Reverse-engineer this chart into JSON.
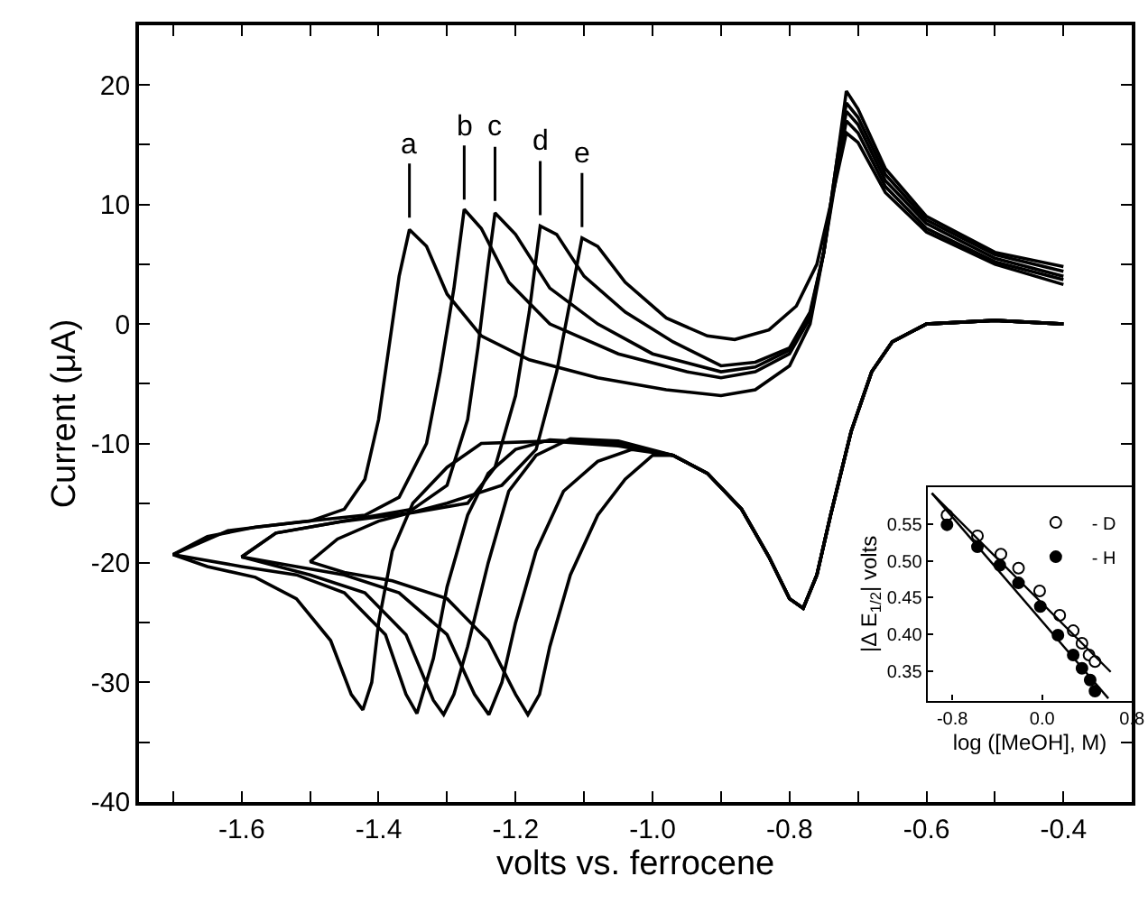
{
  "chart_data": [
    {
      "type": "line",
      "xlabel": "volts vs. ferrocene",
      "ylabel": "Current (μA)",
      "xlim": [
        -1.75,
        -0.3
      ],
      "ylim": [
        -40,
        25
      ],
      "xticks": [
        {
          "value": -1.7,
          "label": null
        },
        -1.6,
        {
          "value": -1.5,
          "label": null
        },
        -1.4,
        {
          "value": -1.3,
          "label": null
        },
        -1.2,
        {
          "value": -1.1,
          "label": null
        },
        {
          "value": -1.0,
          "label": "-1.0"
        },
        {
          "value": -0.9,
          "label": null
        },
        -0.8,
        {
          "value": -0.7,
          "label": null
        },
        -0.6,
        {
          "value": -0.5,
          "label": null
        },
        -0.4
      ],
      "yticks": [
        -40,
        {
          "value": -35,
          "label": null
        },
        -30,
        {
          "value": -25,
          "label": null
        },
        -20,
        {
          "value": -15,
          "label": null
        },
        -10,
        {
          "value": -5,
          "label": null
        },
        0,
        {
          "value": 5,
          "label": null
        },
        10,
        {
          "value": 15,
          "label": null
        },
        20
      ],
      "grid": false,
      "legend": false,
      "annotations": [
        {
          "text": "a",
          "x": -1.355,
          "y": 8.6
        },
        {
          "text": "b",
          "x": -1.275,
          "y": 10.1
        },
        {
          "text": "c",
          "x": -1.23,
          "y": 10.0
        },
        {
          "text": "d",
          "x": -1.164,
          "y": 8.8
        },
        {
          "text": "e",
          "x": -1.103,
          "y": 7.8
        }
      ],
      "series": [
        {
          "color": "#000000",
          "x": [
            -0.4,
            -0.5,
            -0.6,
            -0.65,
            -0.68,
            -0.71,
            -0.74,
            -0.76,
            -0.78,
            -0.8,
            -0.83,
            -0.87,
            -0.92,
            -0.97,
            -1.05,
            -1.15,
            -1.25,
            -1.3,
            -1.35,
            -1.38,
            -1.4,
            -1.41,
            -1.423,
            -1.44,
            -1.47,
            -1.52,
            -1.58,
            -1.65,
            -1.7,
            -1.65,
            -1.58,
            -1.5,
            -1.45,
            -1.42,
            -1.4,
            -1.385,
            -1.37,
            -1.355,
            -1.33,
            -1.3,
            -1.25,
            -1.18,
            -1.08,
            -0.98,
            -0.9,
            -0.85,
            -0.8,
            -0.77,
            -0.75,
            -0.73,
            -0.717,
            -0.7,
            -0.66,
            -0.6,
            -0.5,
            -0.4
          ],
          "values": [
            0.0,
            0.3,
            0.0,
            -1.5,
            -4,
            -9,
            -16,
            -21,
            -23.8,
            -23,
            -19.5,
            -15.5,
            -12.5,
            -11.0,
            -10.2,
            -9.8,
            -10.0,
            -12,
            -15,
            -19,
            -25,
            -30,
            -32.3,
            -31,
            -26.5,
            -23,
            -21.2,
            -20.3,
            -19.3,
            -17.8,
            -17,
            -16.5,
            -15.5,
            -13,
            -8,
            -2,
            4,
            7.9,
            6.5,
            2.5,
            -1,
            -3,
            -4.5,
            -5.5,
            -6,
            -5.5,
            -3.5,
            0,
            6,
            14,
            19.5,
            18,
            13,
            9,
            6,
            4.8
          ]
        },
        {
          "color": "#000000",
          "x": [
            -0.4,
            -0.5,
            -0.6,
            -0.65,
            -0.68,
            -0.71,
            -0.74,
            -0.76,
            -0.78,
            -0.8,
            -0.83,
            -0.87,
            -0.92,
            -0.97,
            -1.05,
            -1.15,
            -1.2,
            -1.24,
            -1.27,
            -1.3,
            -1.32,
            -1.344,
            -1.36,
            -1.39,
            -1.45,
            -1.52,
            -1.6,
            -1.7,
            -1.62,
            -1.52,
            -1.42,
            -1.37,
            -1.33,
            -1.31,
            -1.29,
            -1.275,
            -1.25,
            -1.21,
            -1.15,
            -1.05,
            -0.95,
            -0.9,
            -0.85,
            -0.8,
            -0.77,
            -0.75,
            -0.73,
            -0.717,
            -0.7,
            -0.66,
            -0.6,
            -0.5,
            -0.4
          ],
          "values": [
            0.0,
            0.3,
            0.0,
            -1.5,
            -4,
            -9,
            -16,
            -21,
            -23.8,
            -23,
            -19.5,
            -15.5,
            -12.5,
            -11.0,
            -10.0,
            -9.7,
            -10.5,
            -12.5,
            -16,
            -22,
            -28,
            -32.6,
            -31,
            -26,
            -22.5,
            -21,
            -20.3,
            -19.3,
            -17.3,
            -16.6,
            -16,
            -14.5,
            -10,
            -4,
            3,
            9.6,
            8,
            3.5,
            0,
            -2.5,
            -4,
            -4.5,
            -4,
            -2.5,
            0.5,
            6,
            14,
            18.5,
            17.3,
            12.5,
            8.7,
            5.8,
            4.4
          ]
        },
        {
          "color": "#000000",
          "x": [
            -0.4,
            -0.5,
            -0.6,
            -0.65,
            -0.68,
            -0.71,
            -0.74,
            -0.76,
            -0.78,
            -0.8,
            -0.83,
            -0.87,
            -0.92,
            -0.97,
            -1.05,
            -1.12,
            -1.17,
            -1.21,
            -1.24,
            -1.27,
            -1.29,
            -1.305,
            -1.32,
            -1.36,
            -1.42,
            -1.5,
            -1.6,
            -1.55,
            -1.45,
            -1.35,
            -1.3,
            -1.27,
            -1.255,
            -1.24,
            -1.23,
            -1.2,
            -1.15,
            -1.08,
            -1.0,
            -0.9,
            -0.85,
            -0.8,
            -0.77,
            -0.75,
            -0.73,
            -0.717,
            -0.7,
            -0.66,
            -0.6,
            -0.5,
            -0.4
          ],
          "values": [
            0.0,
            0.3,
            0.0,
            -1.5,
            -4,
            -9,
            -16,
            -21,
            -23.8,
            -23,
            -19.5,
            -15.5,
            -12.5,
            -11.0,
            -9.8,
            -9.6,
            -11,
            -14,
            -20,
            -27,
            -31,
            -32.7,
            -31.5,
            -26,
            -22.5,
            -21,
            -19.5,
            -17.5,
            -16.5,
            -15.5,
            -13.5,
            -8,
            -2,
            5,
            9.3,
            7.5,
            3,
            0,
            -2.5,
            -4,
            -3.6,
            -2.2,
            0.8,
            6,
            13.5,
            17.8,
            16.7,
            12,
            8.4,
            5.5,
            4.0
          ]
        },
        {
          "color": "#000000",
          "x": [
            -0.4,
            -0.5,
            -0.6,
            -0.65,
            -0.68,
            -0.71,
            -0.74,
            -0.76,
            -0.78,
            -0.8,
            -0.83,
            -0.87,
            -0.92,
            -0.97,
            -1.03,
            -1.08,
            -1.13,
            -1.17,
            -1.2,
            -1.22,
            -1.239,
            -1.26,
            -1.3,
            -1.37,
            -1.45,
            -1.52,
            -1.6,
            -1.55,
            -1.45,
            -1.35,
            -1.27,
            -1.23,
            -1.2,
            -1.18,
            -1.164,
            -1.14,
            -1.1,
            -1.04,
            -0.97,
            -0.9,
            -0.85,
            -0.8,
            -0.77,
            -0.75,
            -0.73,
            -0.717,
            -0.7,
            -0.66,
            -0.6,
            -0.5,
            -0.4
          ],
          "values": [
            0.0,
            0.3,
            0.0,
            -1.5,
            -4,
            -9,
            -16,
            -21,
            -23.8,
            -23,
            -19.5,
            -15.5,
            -12.5,
            -11.0,
            -10.5,
            -11.5,
            -14,
            -19,
            -25,
            -30,
            -32.7,
            -31,
            -26,
            -22.5,
            -21,
            -20.3,
            -19.5,
            -17.5,
            -16.5,
            -15.8,
            -15,
            -12,
            -6,
            1,
            8.2,
            7.5,
            4,
            1,
            -1.5,
            -3.5,
            -3.2,
            -2,
            1,
            6,
            13,
            17,
            16,
            11.5,
            8,
            5.2,
            3.7
          ]
        },
        {
          "color": "#000000",
          "x": [
            -0.4,
            -0.5,
            -0.6,
            -0.65,
            -0.68,
            -0.71,
            -0.74,
            -0.76,
            -0.78,
            -0.8,
            -0.83,
            -0.87,
            -0.92,
            -0.97,
            -1.0,
            -1.04,
            -1.08,
            -1.12,
            -1.15,
            -1.165,
            -1.182,
            -1.2,
            -1.24,
            -1.3,
            -1.38,
            -1.45,
            -1.5,
            -1.46,
            -1.4,
            -1.3,
            -1.22,
            -1.17,
            -1.14,
            -1.12,
            -1.103,
            -1.08,
            -1.04,
            -0.98,
            -0.92,
            -0.88,
            -0.83,
            -0.79,
            -0.76,
            -0.74,
            -0.717,
            -0.7,
            -0.66,
            -0.6,
            -0.5,
            -0.4
          ],
          "values": [
            0.0,
            0.3,
            0.0,
            -1.5,
            -4,
            -9,
            -16,
            -21,
            -23.8,
            -23,
            -19.5,
            -15.5,
            -12.5,
            -11.0,
            -11,
            -13,
            -16,
            -21,
            -27,
            -31,
            -32.7,
            -31,
            -26.5,
            -23,
            -21.5,
            -20.8,
            -19.9,
            -18,
            -16.5,
            -15,
            -13.5,
            -10.5,
            -4,
            2,
            7.2,
            6.5,
            3.5,
            0.5,
            -1,
            -1.3,
            -0.5,
            1.5,
            5,
            10,
            16,
            15.2,
            11,
            7.7,
            5,
            3.3
          ]
        }
      ]
    },
    {
      "type": "scatter",
      "xlabel": "log ([MeOH], M)",
      "ylabel": "|Δ E$_{1/2}$| volts",
      "xlim": [
        -1.02,
        0.8
      ],
      "ylim": [
        0.31,
        0.6
      ],
      "xticks": [
        -0.8,
        {
          "value": 0,
          "label": "0.0"
        },
        0.8
      ],
      "yticks": [
        0.35,
        {
          "value": 0.4,
          "label": "0.40"
        },
        0.45,
        {
          "value": 0.5,
          "label": "0.50"
        },
        0.55
      ],
      "grid": false,
      "legend": "top right",
      "series": [
        {
          "name": "- D",
          "type": "scatter",
          "marker": "circle",
          "color": "#ffffff",
          "x": [
            -0.847,
            -0.576,
            -0.367,
            -0.21,
            -0.022,
            0.157,
            0.277,
            0.355,
            0.418,
            0.471
          ],
          "values": [
            0.562,
            0.534,
            0.509,
            0.49,
            0.459,
            0.426,
            0.405,
            0.388,
            0.372,
            0.363
          ]
        },
        {
          "name": "- H",
          "type": "scatter",
          "marker": "circle",
          "color": "#000000",
          "x": [
            -0.847,
            -0.576,
            -0.377,
            -0.21,
            -0.016,
            0.141,
            0.277,
            0.355,
            0.428,
            0.471
          ],
          "values": [
            0.549,
            0.519,
            0.494,
            0.47,
            0.438,
            0.399,
            0.372,
            0.354,
            0.338,
            0.323
          ]
        },
        {
          "type": "line",
          "color": "#000000",
          "x": [
            -0.982,
            0.611
          ],
          "values": [
            0.592,
            0.349
          ]
        },
        {
          "type": "line",
          "color": "#000000",
          "x": [
            -0.982,
            0.59
          ],
          "values": [
            0.592,
            0.313
          ]
        }
      ]
    }
  ]
}
